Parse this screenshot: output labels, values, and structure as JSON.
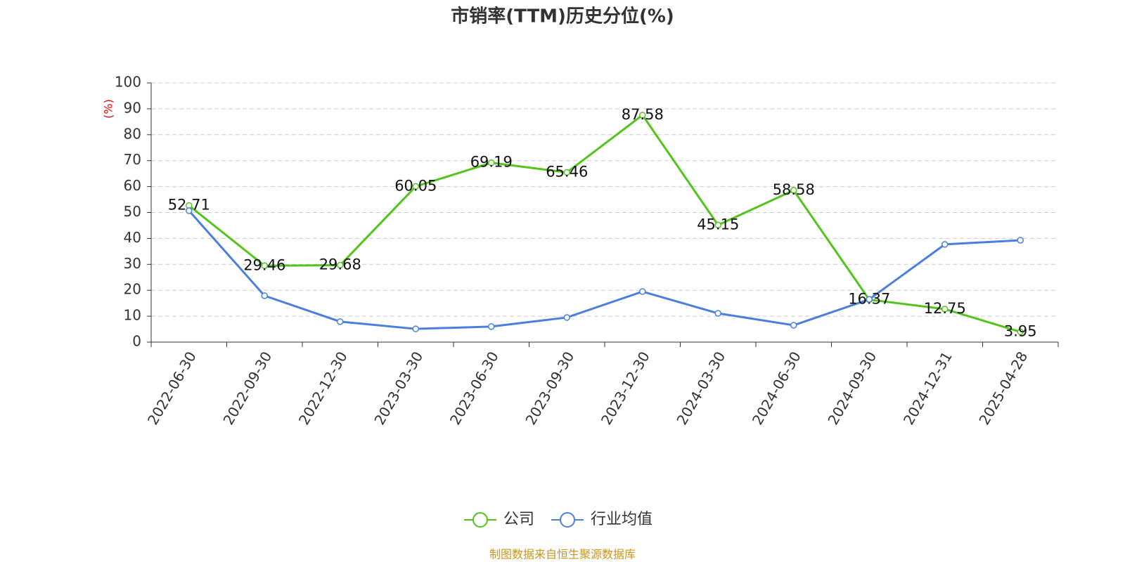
{
  "chart_data": {
    "type": "line",
    "title": "市销率(TTM)历史分位(%)",
    "y_label": "(%)",
    "categories": [
      "2022-06-30",
      "2022-09-30",
      "2022-12-30",
      "2023-03-30",
      "2023-06-30",
      "2023-09-30",
      "2023-12-30",
      "2024-03-30",
      "2024-06-30",
      "2024-09-30",
      "2024-12-31",
      "2025-04-28"
    ],
    "series": [
      {
        "name": "公司",
        "color": "#52c41a",
        "values": [
          52.71,
          29.46,
          29.68,
          60.05,
          69.19,
          65.46,
          87.58,
          45.15,
          58.58,
          16.37,
          12.75,
          3.95
        ]
      },
      {
        "name": "行业均值",
        "color": "#4a7fe0",
        "values": [
          50.7,
          17.9,
          7.9,
          5.1,
          6.0,
          9.5,
          19.5,
          11.1,
          6.5,
          16.5,
          37.7,
          39.3
        ]
      }
    ],
    "ylim": [
      0,
      100
    ],
    "yticks": [
      0,
      10,
      20,
      30,
      40,
      50,
      60,
      70,
      80,
      90,
      100
    ],
    "grid": true,
    "source": "制图数据来自恒生聚源数据库"
  }
}
